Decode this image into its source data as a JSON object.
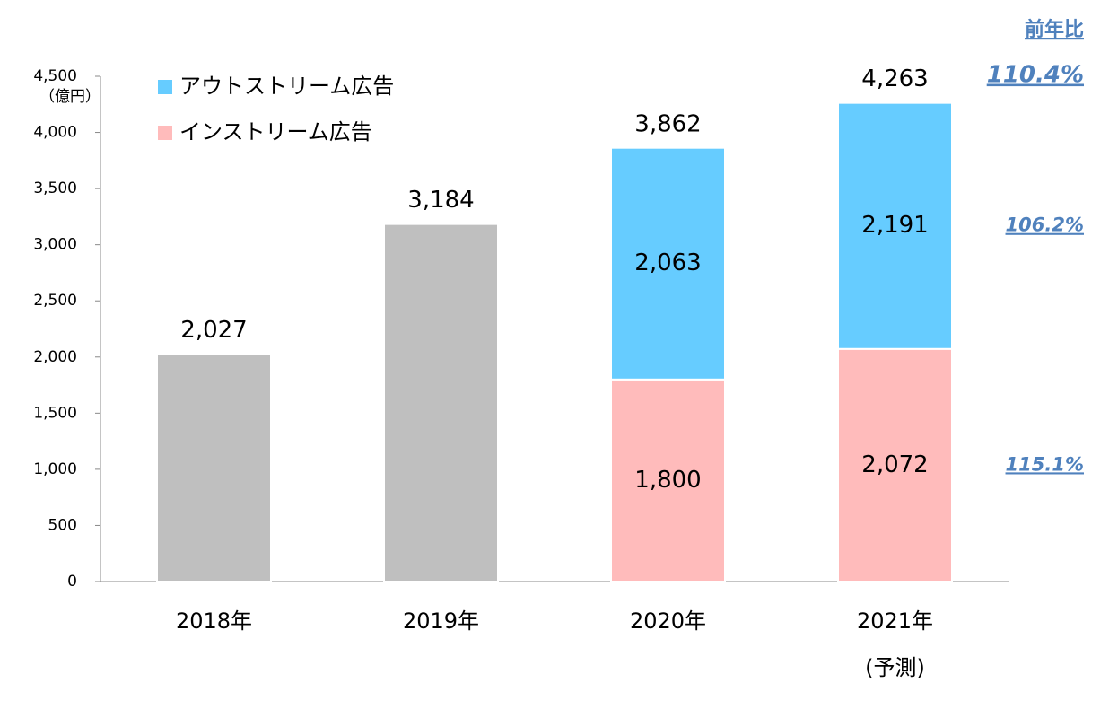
{
  "chart_data": {
    "type": "stacked-bar",
    "y_unit": "（億円）",
    "categories": [
      "2018年",
      "2019年",
      "2020年",
      "2021年"
    ],
    "category_notes": [
      null,
      null,
      null,
      "(予測)"
    ],
    "series": [
      {
        "color": "#bfbfbf",
        "values": [
          2027,
          3184,
          null,
          null
        ]
      },
      {
        "name": "インストリーム広告",
        "color": "#ffbbbb",
        "values": [
          null,
          null,
          1800,
          2072
        ],
        "value_labels": [
          null,
          null,
          "1,800",
          "2,072"
        ]
      },
      {
        "name": "アウトストリーム広告",
        "color": "#66ccff",
        "values": [
          null,
          null,
          2063,
          2191
        ],
        "value_labels": [
          null,
          null,
          "2,063",
          "2,191"
        ]
      }
    ],
    "totals": [
      2027,
      3184,
      3862,
      4263
    ],
    "total_labels": [
      "2,027",
      "3,184",
      "3,862",
      "4,263"
    ],
    "ylim": [
      0,
      4500
    ],
    "yticks": [
      0,
      500,
      {
        "value": 1000,
        "label": "1,000"
      },
      {
        "value": 1500,
        "label": "1,500"
      },
      {
        "value": 2000,
        "label": "2,000"
      },
      {
        "value": 2500,
        "label": "2,500"
      },
      {
        "value": 3000,
        "label": "3,000"
      },
      {
        "value": 3500,
        "label": "3,500"
      },
      {
        "value": 4000,
        "label": "4,000"
      },
      {
        "value": 4500,
        "label": "4,500"
      }
    ],
    "growth": {
      "title": "前年比",
      "color": "#4f81bd",
      "items": [
        {
          "value": 110.4,
          "label": "110.4%"
        },
        {
          "value": 106.2,
          "label": "106.2%"
        },
        {
          "value": 115.1,
          "label": "115.1%"
        }
      ]
    }
  }
}
